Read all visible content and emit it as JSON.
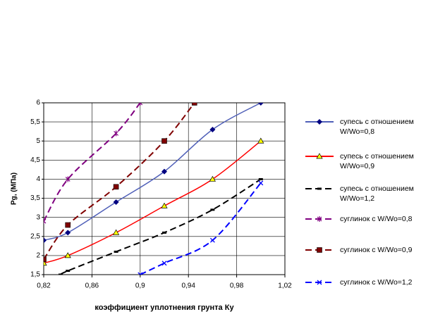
{
  "chart_data": {
    "type": "line",
    "xlabel": "коэффициент уплотнения грунта Ку",
    "ylabel": "Pg, (МПа)",
    "xlim": [
      0.82,
      1.02
    ],
    "xticks": [
      {
        "value": 0.82,
        "label": "0,82"
      },
      {
        "value": 0.86,
        "label": "0,86"
      },
      {
        "value": 0.9,
        "label": "0,9"
      },
      {
        "value": 0.94,
        "label": "0,94"
      },
      {
        "value": 0.98,
        "label": "0,98"
      },
      {
        "value": 1.02,
        "label": "1,02"
      }
    ],
    "ylim": [
      1.5,
      6
    ],
    "yticks": [
      {
        "value": 1.5,
        "label": "1,5"
      },
      2,
      {
        "value": 2.5,
        "label": "2,5"
      },
      3,
      {
        "value": 3.5,
        "label": "3,5"
      },
      4,
      {
        "value": 4.5,
        "label": "4,5"
      },
      5,
      {
        "value": 5.5,
        "label": "5,5"
      },
      6
    ],
    "grid": true,
    "legend": "right",
    "series": [
      {
        "name": "супесь с отношением W/Wo=0,8",
        "color": "#4f5fb8",
        "dash": "solid",
        "marker": "diamond",
        "x": [
          0.82,
          0.84,
          0.88,
          0.92,
          0.96,
          1.0
        ],
        "values": [
          2.4,
          2.6,
          3.4,
          4.2,
          5.3,
          6.0
        ]
      },
      {
        "name": "супесь с отношением W/Wo=0,9",
        "color": "#ff0000",
        "dash": "solid",
        "marker": "triangle",
        "x": [
          0.82,
          0.84,
          0.88,
          0.92,
          0.96,
          1.0
        ],
        "values": [
          1.8,
          2.0,
          2.6,
          3.3,
          4.0,
          5.0
        ]
      },
      {
        "name": "супесь с отношением W/Wo=1,2",
        "color": "#000000",
        "dash": "dashed",
        "marker": "dash",
        "x": [
          0.834,
          0.84,
          0.88,
          0.92,
          0.96,
          1.0
        ],
        "values": [
          1.5,
          1.6,
          2.1,
          2.6,
          3.2,
          4.0
        ]
      },
      {
        "name": "суглинок с W/Wo=0,8",
        "color": "#800080",
        "dash": "dashed",
        "marker": "star",
        "x": [
          0.82,
          0.84,
          0.88,
          0.9
        ],
        "values": [
          2.9,
          4.0,
          5.2,
          6.0
        ]
      },
      {
        "name": "суглинок с W/Wo=0,9",
        "color": "#800000",
        "dash": "dashed",
        "marker": "square",
        "x": [
          0.82,
          0.84,
          0.88,
          0.92,
          0.945
        ],
        "values": [
          1.9,
          2.8,
          3.8,
          5.0,
          6.0
        ]
      },
      {
        "name": "суглинок с W/Wo=1,2",
        "color": "#0000ff",
        "dash": "dashed",
        "marker": "cross",
        "x": [
          0.9,
          0.92,
          0.96,
          1.0
        ],
        "values": [
          1.5,
          1.8,
          2.4,
          3.9
        ]
      }
    ]
  }
}
